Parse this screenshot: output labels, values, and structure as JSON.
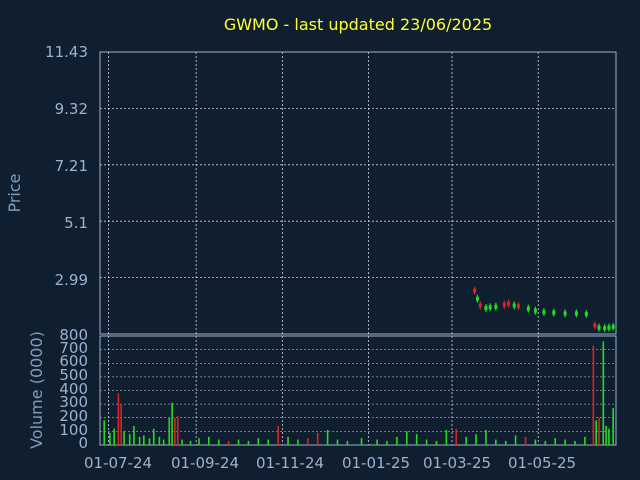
{
  "chart_data": [
    {
      "type": "candlestick",
      "title": "GWMO - last updated 23/06/2025",
      "ylabel": "Price",
      "y_ticks": [
        "11.43",
        "9.32",
        "7.21",
        "5.1",
        "2.99",
        "800"
      ],
      "ylim": [
        0.88,
        11.43
      ],
      "x_ticks": [
        "01-07-24",
        "01-09-24",
        "01-11-24",
        "01-01-25",
        "01-03-25",
        "01-05-25"
      ],
      "x_tick_dates": [
        "2024-07-01",
        "2024-09-01",
        "2024-11-01",
        "2025-01-01",
        "2025-03-01",
        "2025-05-01"
      ],
      "xlim": [
        "2024-06-25",
        "2025-06-25"
      ],
      "grid": true,
      "series": [
        {
          "date": "2025-03-17",
          "close": 2.5,
          "direction": "down"
        },
        {
          "date": "2025-03-19",
          "close": 2.2,
          "direction": "up"
        },
        {
          "date": "2025-03-21",
          "close": 1.95,
          "direction": "down"
        },
        {
          "date": "2025-03-25",
          "close": 1.85,
          "direction": "up"
        },
        {
          "date": "2025-03-28",
          "close": 1.88,
          "direction": "up"
        },
        {
          "date": "2025-04-01",
          "close": 1.9,
          "direction": "up"
        },
        {
          "date": "2025-04-07",
          "close": 1.98,
          "direction": "down"
        },
        {
          "date": "2025-04-10",
          "close": 2.02,
          "direction": "down"
        },
        {
          "date": "2025-04-14",
          "close": 1.95,
          "direction": "up"
        },
        {
          "date": "2025-04-17",
          "close": 1.92,
          "direction": "down"
        },
        {
          "date": "2025-04-24",
          "close": 1.83,
          "direction": "up"
        },
        {
          "date": "2025-04-29",
          "close": 1.75,
          "direction": "up"
        },
        {
          "date": "2025-05-05",
          "close": 1.7,
          "direction": "up"
        },
        {
          "date": "2025-05-12",
          "close": 1.68,
          "direction": "up"
        },
        {
          "date": "2025-05-20",
          "close": 1.65,
          "direction": "up"
        },
        {
          "date": "2025-05-28",
          "close": 1.65,
          "direction": "up"
        },
        {
          "date": "2025-06-04",
          "close": 1.63,
          "direction": "up"
        },
        {
          "date": "2025-06-10",
          "close": 1.2,
          "direction": "down"
        },
        {
          "date": "2025-06-13",
          "close": 1.12,
          "direction": "up"
        },
        {
          "date": "2025-06-17",
          "close": 1.1,
          "direction": "up"
        },
        {
          "date": "2025-06-20",
          "close": 1.12,
          "direction": "up"
        },
        {
          "date": "2025-06-23",
          "close": 1.15,
          "direction": "up"
        }
      ]
    },
    {
      "type": "bar",
      "ylabel": "Volume (0000)",
      "y_ticks": [
        "0",
        "100",
        "200",
        "300",
        "400",
        "500",
        "600",
        "700"
      ],
      "ylim": [
        0,
        800
      ],
      "grid": true,
      "series": [
        {
          "date": "2024-06-28",
          "value": 180,
          "direction": "up"
        },
        {
          "date": "2024-07-02",
          "value": 90,
          "direction": "up"
        },
        {
          "date": "2024-07-05",
          "value": 120,
          "direction": "up"
        },
        {
          "date": "2024-07-08",
          "value": 380,
          "direction": "down"
        },
        {
          "date": "2024-07-10",
          "value": 300,
          "direction": "down"
        },
        {
          "date": "2024-07-12",
          "value": 100,
          "direction": "up"
        },
        {
          "date": "2024-07-16",
          "value": 80,
          "direction": "up"
        },
        {
          "date": "2024-07-19",
          "value": 140,
          "direction": "up"
        },
        {
          "date": "2024-07-23",
          "value": 60,
          "direction": "up"
        },
        {
          "date": "2024-07-26",
          "value": 70,
          "direction": "up"
        },
        {
          "date": "2024-07-30",
          "value": 50,
          "direction": "up"
        },
        {
          "date": "2024-08-02",
          "value": 120,
          "direction": "up"
        },
        {
          "date": "2024-08-06",
          "value": 60,
          "direction": "up"
        },
        {
          "date": "2024-08-09",
          "value": 40,
          "direction": "up"
        },
        {
          "date": "2024-08-13",
          "value": 200,
          "direction": "up"
        },
        {
          "date": "2024-08-15",
          "value": 310,
          "direction": "up"
        },
        {
          "date": "2024-08-17",
          "value": 200,
          "direction": "down"
        },
        {
          "date": "2024-08-19",
          "value": 210,
          "direction": "down"
        },
        {
          "date": "2024-08-22",
          "value": 40,
          "direction": "up"
        },
        {
          "date": "2024-08-28",
          "value": 30,
          "direction": "up"
        },
        {
          "date": "2024-09-03",
          "value": 50,
          "direction": "up"
        },
        {
          "date": "2024-09-10",
          "value": 60,
          "direction": "up"
        },
        {
          "date": "2024-09-17",
          "value": 40,
          "direction": "up"
        },
        {
          "date": "2024-09-24",
          "value": 30,
          "direction": "down"
        },
        {
          "date": "2024-10-01",
          "value": 40,
          "direction": "up"
        },
        {
          "date": "2024-10-08",
          "value": 30,
          "direction": "up"
        },
        {
          "date": "2024-10-15",
          "value": 50,
          "direction": "up"
        },
        {
          "date": "2024-10-22",
          "value": 40,
          "direction": "up"
        },
        {
          "date": "2024-10-29",
          "value": 140,
          "direction": "down"
        },
        {
          "date": "2024-11-05",
          "value": 60,
          "direction": "up"
        },
        {
          "date": "2024-11-12",
          "value": 40,
          "direction": "up"
        },
        {
          "date": "2024-11-19",
          "value": 50,
          "direction": "down"
        },
        {
          "date": "2024-11-26",
          "value": 90,
          "direction": "down"
        },
        {
          "date": "2024-12-03",
          "value": 110,
          "direction": "up"
        },
        {
          "date": "2024-12-10",
          "value": 40,
          "direction": "up"
        },
        {
          "date": "2024-12-17",
          "value": 30,
          "direction": "up"
        },
        {
          "date": "2024-12-27",
          "value": 50,
          "direction": "up"
        },
        {
          "date": "2025-01-07",
          "value": 40,
          "direction": "up"
        },
        {
          "date": "2025-01-14",
          "value": 30,
          "direction": "up"
        },
        {
          "date": "2025-01-21",
          "value": 60,
          "direction": "up"
        },
        {
          "date": "2025-01-28",
          "value": 100,
          "direction": "up"
        },
        {
          "date": "2025-02-04",
          "value": 80,
          "direction": "up"
        },
        {
          "date": "2025-02-11",
          "value": 40,
          "direction": "up"
        },
        {
          "date": "2025-02-18",
          "value": 30,
          "direction": "up"
        },
        {
          "date": "2025-02-25",
          "value": 110,
          "direction": "up"
        },
        {
          "date": "2025-03-04",
          "value": 120,
          "direction": "down"
        },
        {
          "date": "2025-03-11",
          "value": 60,
          "direction": "up"
        },
        {
          "date": "2025-03-18",
          "value": 80,
          "direction": "up"
        },
        {
          "date": "2025-03-25",
          "value": 110,
          "direction": "up"
        },
        {
          "date": "2025-04-01",
          "value": 40,
          "direction": "up"
        },
        {
          "date": "2025-04-08",
          "value": 30,
          "direction": "up"
        },
        {
          "date": "2025-04-15",
          "value": 70,
          "direction": "up"
        },
        {
          "date": "2025-04-22",
          "value": 60,
          "direction": "down"
        },
        {
          "date": "2025-04-29",
          "value": 40,
          "direction": "up"
        },
        {
          "date": "2025-05-06",
          "value": 30,
          "direction": "up"
        },
        {
          "date": "2025-05-13",
          "value": 50,
          "direction": "up"
        },
        {
          "date": "2025-05-20",
          "value": 40,
          "direction": "up"
        },
        {
          "date": "2025-05-27",
          "value": 30,
          "direction": "up"
        },
        {
          "date": "2025-06-03",
          "value": 60,
          "direction": "up"
        },
        {
          "date": "2025-06-09",
          "value": 730,
          "direction": "down"
        },
        {
          "date": "2025-06-11",
          "value": 180,
          "direction": "up"
        },
        {
          "date": "2025-06-13",
          "value": 200,
          "direction": "down"
        },
        {
          "date": "2025-06-16",
          "value": 760,
          "direction": "up"
        },
        {
          "date": "2025-06-18",
          "value": 140,
          "direction": "up"
        },
        {
          "date": "2025-06-20",
          "value": 120,
          "direction": "up"
        },
        {
          "date": "2025-06-23",
          "value": 270,
          "direction": "up"
        }
      ]
    }
  ],
  "colors": {
    "background": "#0f1f30",
    "axis": "#9ab3d0",
    "grid": "#c8d4e2",
    "up": "#22dd22",
    "down": "#dd2222",
    "title": "#ffff33",
    "label": "#7f9cbd"
  }
}
